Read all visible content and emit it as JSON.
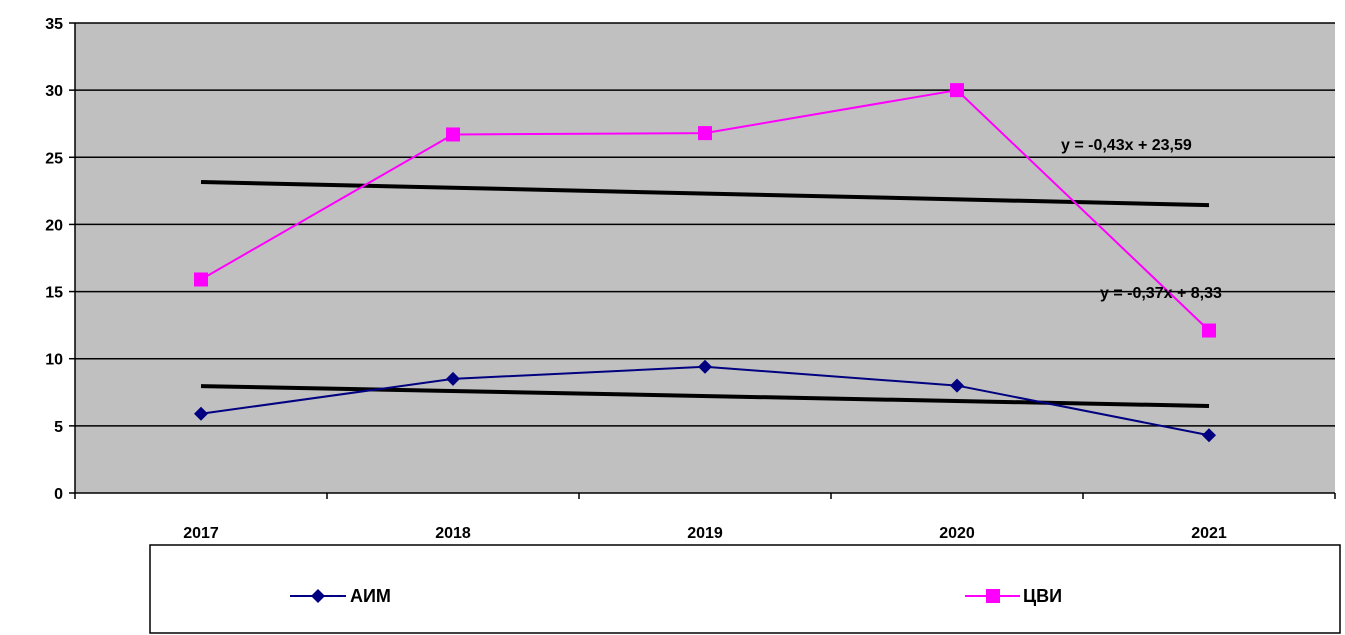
{
  "chart_data": {
    "type": "line",
    "categories": [
      "2017",
      "2018",
      "2019",
      "2020",
      "2021"
    ],
    "ylim": [
      0,
      35
    ],
    "yticks": [
      0,
      5,
      10,
      15,
      20,
      25,
      30,
      35
    ],
    "grid": true,
    "plot_background": "#c0c0c0",
    "legend_position": "bottom",
    "series": [
      {
        "name": "АИМ",
        "values": [
          5.9,
          8.5,
          9.4,
          8.0,
          4.3
        ],
        "color": "#000080",
        "marker": "diamond"
      },
      {
        "name": "ЦВИ",
        "values": [
          15.9,
          26.7,
          26.8,
          30.0,
          12.1
        ],
        "color": "#ff00ff",
        "marker": "square"
      }
    ],
    "trendlines": [
      {
        "label": "y = -0,43x + 23,59",
        "start": 23.16,
        "end": 21.44,
        "color": "#000000"
      },
      {
        "label": "y = -0,37x + 8,33",
        "start": 7.96,
        "end": 6.48,
        "color": "#000000"
      }
    ]
  }
}
